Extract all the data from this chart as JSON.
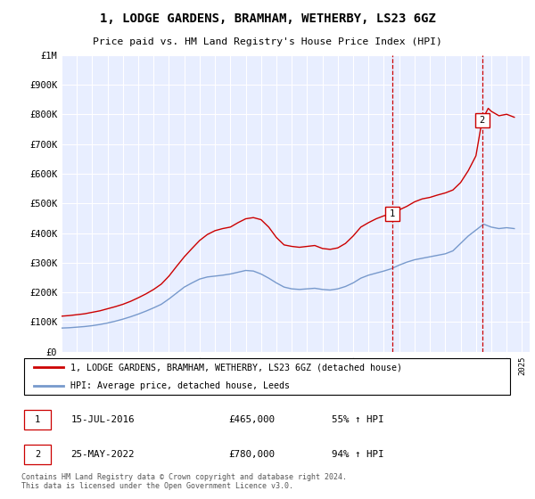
{
  "title": "1, LODGE GARDENS, BRAMHAM, WETHERBY, LS23 6GZ",
  "subtitle": "Price paid vs. HM Land Registry's House Price Index (HPI)",
  "ylabel_ticks": [
    "£0",
    "£100K",
    "£200K",
    "£300K",
    "£400K",
    "£500K",
    "£600K",
    "£700K",
    "£800K",
    "£900K",
    "£1M"
  ],
  "ytick_values": [
    0,
    100000,
    200000,
    300000,
    400000,
    500000,
    600000,
    700000,
    800000,
    900000,
    1000000
  ],
  "ylim": [
    0,
    1000000
  ],
  "xlim_start": 1995.0,
  "xlim_end": 2025.5,
  "background_color": "#ffffff",
  "plot_bg_color": "#e8eeff",
  "grid_color": "#ffffff",
  "red_line_color": "#cc0000",
  "blue_line_color": "#7799cc",
  "marker1_x": 2016.54,
  "marker1_y": 465000,
  "marker2_x": 2022.4,
  "marker2_y": 780000,
  "marker1_label": "1",
  "marker2_label": "2",
  "marker1_date": "15-JUL-2016",
  "marker1_price": "£465,000",
  "marker1_hpi": "55% ↑ HPI",
  "marker2_date": "25-MAY-2022",
  "marker2_price": "£780,000",
  "marker2_hpi": "94% ↑ HPI",
  "legend_label_red": "1, LODGE GARDENS, BRAMHAM, WETHERBY, LS23 6GZ (detached house)",
  "legend_label_blue": "HPI: Average price, detached house, Leeds",
  "footer_text": "Contains HM Land Registry data © Crown copyright and database right 2024.\nThis data is licensed under the Open Government Licence v3.0.",
  "red_x": [
    1995.0,
    1995.5,
    1996.0,
    1996.5,
    1997.0,
    1997.5,
    1998.0,
    1998.5,
    1999.0,
    1999.5,
    2000.0,
    2000.5,
    2001.0,
    2001.5,
    2002.0,
    2002.5,
    2003.0,
    2003.5,
    2004.0,
    2004.5,
    2005.0,
    2005.5,
    2006.0,
    2006.5,
    2007.0,
    2007.5,
    2008.0,
    2008.5,
    2009.0,
    2009.5,
    2010.0,
    2010.5,
    2011.0,
    2011.5,
    2012.0,
    2012.5,
    2013.0,
    2013.5,
    2014.0,
    2014.5,
    2015.0,
    2015.5,
    2016.0,
    2016.54,
    2016.8,
    2017.0,
    2017.5,
    2018.0,
    2018.5,
    2019.0,
    2019.5,
    2020.0,
    2020.5,
    2021.0,
    2021.5,
    2022.0,
    2022.4,
    2022.8,
    2023.0,
    2023.5,
    2024.0,
    2024.5
  ],
  "red_y": [
    120000,
    122000,
    125000,
    128000,
    133000,
    138000,
    145000,
    152000,
    160000,
    170000,
    182000,
    195000,
    210000,
    228000,
    255000,
    288000,
    320000,
    348000,
    375000,
    395000,
    408000,
    415000,
    420000,
    435000,
    448000,
    452000,
    445000,
    420000,
    385000,
    360000,
    355000,
    352000,
    355000,
    358000,
    348000,
    345000,
    350000,
    365000,
    390000,
    420000,
    435000,
    448000,
    458000,
    465000,
    470000,
    478000,
    490000,
    505000,
    515000,
    520000,
    528000,
    535000,
    545000,
    570000,
    610000,
    660000,
    780000,
    820000,
    810000,
    795000,
    800000,
    790000
  ],
  "blue_x": [
    1995.0,
    1995.5,
    1996.0,
    1996.5,
    1997.0,
    1997.5,
    1998.0,
    1998.5,
    1999.0,
    1999.5,
    2000.0,
    2000.5,
    2001.0,
    2001.5,
    2002.0,
    2002.5,
    2003.0,
    2003.5,
    2004.0,
    2004.5,
    2005.0,
    2005.5,
    2006.0,
    2006.5,
    2007.0,
    2007.5,
    2008.0,
    2008.5,
    2009.0,
    2009.5,
    2010.0,
    2010.5,
    2011.0,
    2011.5,
    2012.0,
    2012.5,
    2013.0,
    2013.5,
    2014.0,
    2014.5,
    2015.0,
    2015.5,
    2016.0,
    2016.5,
    2017.0,
    2017.5,
    2018.0,
    2018.5,
    2019.0,
    2019.5,
    2020.0,
    2020.5,
    2021.0,
    2021.5,
    2022.0,
    2022.5,
    2023.0,
    2023.5,
    2024.0,
    2024.5
  ],
  "blue_y": [
    80000,
    81000,
    83000,
    85000,
    88000,
    92000,
    97000,
    103000,
    110000,
    118000,
    127000,
    137000,
    148000,
    160000,
    178000,
    198000,
    218000,
    232000,
    245000,
    252000,
    255000,
    258000,
    262000,
    268000,
    274000,
    272000,
    262000,
    248000,
    232000,
    218000,
    212000,
    210000,
    212000,
    214000,
    210000,
    208000,
    212000,
    220000,
    232000,
    248000,
    258000,
    265000,
    272000,
    280000,
    292000,
    302000,
    310000,
    315000,
    320000,
    325000,
    330000,
    340000,
    365000,
    390000,
    410000,
    430000,
    420000,
    415000,
    418000,
    415000
  ]
}
